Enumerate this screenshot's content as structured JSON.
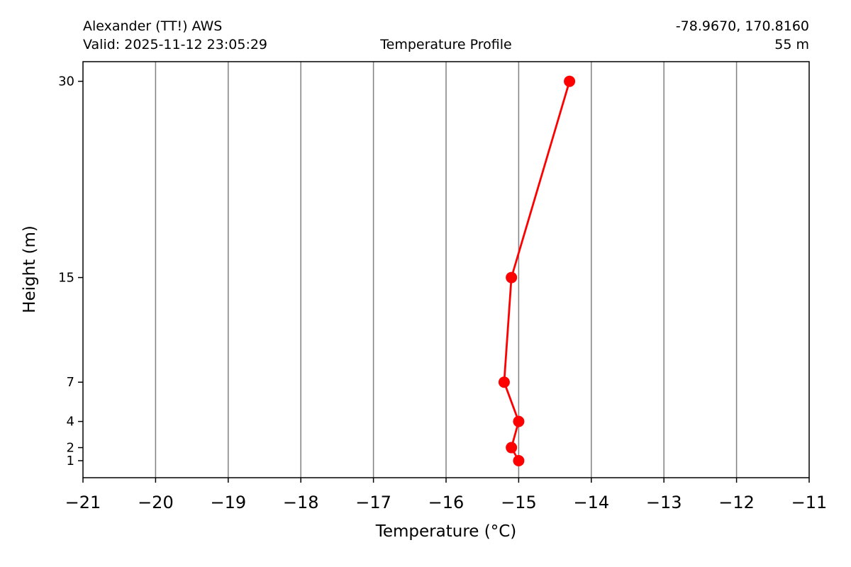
{
  "header": {
    "station": "Alexander (TT!) AWS",
    "valid": "Valid: 2025-11-12 23:05:29",
    "title": "Temperature Profile",
    "coords": "-78.9670, 170.8160",
    "elevation": "55 m"
  },
  "chart_data": {
    "type": "line",
    "title": "Temperature Profile",
    "xlabel": "Temperature (°C)",
    "ylabel": "Height (m)",
    "xlim": [
      -21,
      -11
    ],
    "ylim": [
      -0.3,
      31.5
    ],
    "grid": "vertical",
    "x_ticks": [
      -21,
      -20,
      -19,
      -18,
      -17,
      -16,
      -15,
      -14,
      -13,
      -12,
      -11
    ],
    "y_ticks": [
      1,
      2,
      4,
      7,
      15,
      30
    ],
    "series": [
      {
        "color": "#ff0000",
        "points": [
          {
            "x": -15.0,
            "y": 1
          },
          {
            "x": -15.1,
            "y": 2
          },
          {
            "x": -15.0,
            "y": 4
          },
          {
            "x": -15.2,
            "y": 7
          },
          {
            "x": -15.1,
            "y": 15
          },
          {
            "x": -14.3,
            "y": 30
          }
        ]
      }
    ]
  }
}
